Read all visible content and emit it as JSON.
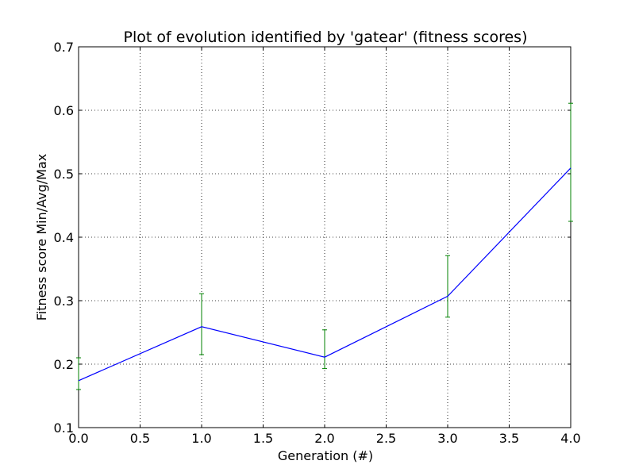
{
  "chart_data": {
    "type": "line",
    "title": "Plot of evolution identified by 'gatear' (fitness scores)",
    "xlabel": "Generation (#)",
    "ylabel": "Fitness score Min/Avg/Max",
    "xlim": [
      0.0,
      4.0
    ],
    "ylim": [
      0.1,
      0.7
    ],
    "grid": true,
    "x_ticks": [
      "0.0",
      "0.5",
      "1.0",
      "1.5",
      "2.0",
      "2.5",
      "3.0",
      "3.5",
      "4.0"
    ],
    "y_ticks": [
      "0.1",
      "0.2",
      "0.3",
      "0.4",
      "0.5",
      "0.6",
      "0.7"
    ],
    "x": [
      0,
      1,
      2,
      3,
      4
    ],
    "avg": [
      0.174,
      0.259,
      0.211,
      0.307,
      0.509
    ],
    "min": [
      0.16,
      0.215,
      0.193,
      0.274,
      0.425
    ],
    "max": [
      0.21,
      0.311,
      0.254,
      0.371,
      0.611
    ],
    "colors": {
      "line": "#0000ff",
      "error_bars": "#008000"
    }
  }
}
